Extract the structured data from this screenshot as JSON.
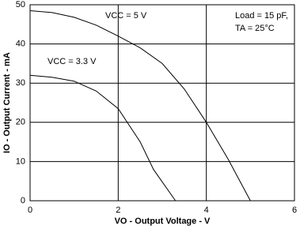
{
  "chart_data": {
    "type": "line",
    "xlabel": "VO - Output Voltage - V",
    "ylabel": "IO - Output Current - mA",
    "annotations": [
      "Load = 15 pF,",
      "TA = 25°C"
    ],
    "series": [
      {
        "name": "VCC = 5 V",
        "color": "#000000",
        "x": [
          0,
          0.5,
          1,
          1.5,
          2,
          2.5,
          3,
          3.5,
          4,
          4.5,
          5
        ],
        "values": [
          48.5,
          48,
          46.8,
          44.8,
          42,
          39,
          35,
          28.5,
          20,
          10.5,
          0
        ]
      },
      {
        "name": "VCC = 3.3 V",
        "color": "#000000",
        "x": [
          0,
          0.5,
          1,
          1.5,
          2,
          2.5,
          2.8,
          3.3
        ],
        "values": [
          32,
          31.5,
          30.5,
          28,
          23.5,
          15,
          8,
          0
        ]
      }
    ],
    "xlim": [
      0,
      6
    ],
    "xticks": [
      0,
      2,
      4,
      6
    ],
    "ylim": [
      0,
      50
    ],
    "yticks": [
      0,
      10,
      20,
      30,
      40,
      50
    ],
    "grid": true
  }
}
